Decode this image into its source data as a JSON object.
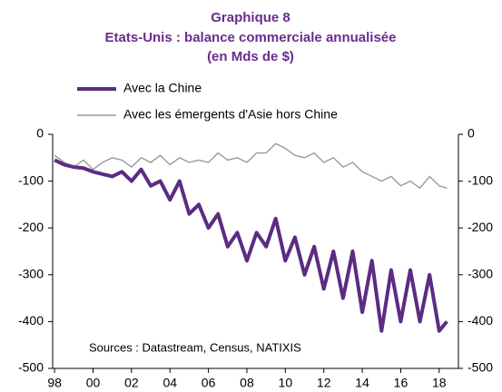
{
  "chart_data": {
    "type": "line",
    "title": [
      "Graphique 8",
      "Etats-Unis : balance commerciale annualisée",
      "(en Mds de $)"
    ],
    "annotation": "Sources : Datastream, Census, NATIXIS",
    "x": [
      1998,
      1998.5,
      1999,
      1999.5,
      2000,
      2000.5,
      2001,
      2001.5,
      2002,
      2002.5,
      2003,
      2003.5,
      2004,
      2004.5,
      2005,
      2005.5,
      2006,
      2006.5,
      2007,
      2007.5,
      2008,
      2008.5,
      2009,
      2009.5,
      2010,
      2010.5,
      2011,
      2011.5,
      2012,
      2012.5,
      2013,
      2013.5,
      2014,
      2014.5,
      2015,
      2015.5,
      2016,
      2016.5,
      2017,
      2017.5,
      2018,
      2018.4
    ],
    "series": [
      {
        "name": "Avec la Chine",
        "color": "#5b2c83",
        "values": [
          -55,
          -65,
          -70,
          -72,
          -80,
          -85,
          -90,
          -80,
          -100,
          -75,
          -110,
          -100,
          -140,
          -100,
          -170,
          -150,
          -200,
          -170,
          -240,
          -210,
          -270,
          -210,
          -240,
          -180,
          -270,
          -220,
          -300,
          -240,
          -330,
          -250,
          -350,
          -250,
          -380,
          -270,
          -420,
          -290,
          -400,
          -290,
          -400,
          -300,
          -420,
          -400
        ]
      },
      {
        "name": "Avec les émergents d'Asie hors Chine",
        "color": "#9a9a9a",
        "values": [
          -45,
          -60,
          -70,
          -55,
          -75,
          -60,
          -50,
          -55,
          -70,
          -50,
          -60,
          -45,
          -65,
          -50,
          -60,
          -55,
          -60,
          -40,
          -55,
          -50,
          -60,
          -40,
          -40,
          -20,
          -30,
          -45,
          -50,
          -40,
          -60,
          -50,
          -70,
          -60,
          -80,
          -90,
          -100,
          -90,
          -110,
          -100,
          -115,
          -90,
          -110,
          -115
        ]
      }
    ],
    "xlim": [
      1997.9,
      2019
    ],
    "xticks": [
      {
        "value": 1998,
        "label": "98"
      },
      {
        "value": 2000,
        "label": "00"
      },
      {
        "value": 2002,
        "label": "02"
      },
      {
        "value": 2004,
        "label": "04"
      },
      {
        "value": 2006,
        "label": "06"
      },
      {
        "value": 2008,
        "label": "08"
      },
      {
        "value": 2010,
        "label": "10"
      },
      {
        "value": 2012,
        "label": "12"
      },
      {
        "value": 2014,
        "label": "14"
      },
      {
        "value": 2016,
        "label": "16"
      },
      {
        "value": 2018,
        "label": "18"
      }
    ],
    "ylim": [
      -500,
      0
    ],
    "yticks": [
      -500,
      -400,
      -300,
      -200,
      -100,
      0
    ],
    "y2lim": [
      -500,
      0
    ],
    "y2ticks": [
      -500,
      -400,
      -300,
      -200,
      -100,
      0
    ],
    "grid": false
  }
}
